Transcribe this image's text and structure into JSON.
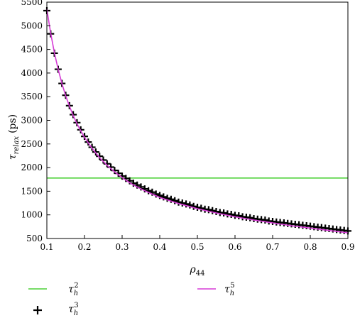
{
  "chart_data": {
    "type": "line",
    "x_label_symbol": "ρ",
    "x_label_sub": "44",
    "y_label_symbol": "τ",
    "y_label_sub": "relax",
    "y_label_unit": "(ps)",
    "xlim": [
      0.1,
      0.9
    ],
    "ylim": [
      500,
      5500
    ],
    "x_ticks": [
      "0.1",
      "0.2",
      "0.3",
      "0.4",
      "0.5",
      "0.6",
      "0.7",
      "0.8",
      "0.9"
    ],
    "x_tick_values": [
      0.1,
      0.2,
      0.3,
      0.4,
      0.5,
      0.6,
      0.7,
      0.8,
      0.9
    ],
    "y_ticks": [
      "500",
      "1000",
      "1500",
      "2000",
      "2500",
      "3000",
      "3500",
      "4000",
      "4500",
      "5000",
      "5500"
    ],
    "y_tick_values": [
      500,
      1000,
      1500,
      2000,
      2500,
      3000,
      3500,
      4000,
      4500,
      5000,
      5500
    ],
    "grid": false,
    "legend_position": "below",
    "series": [
      {
        "name_symbol": "τ",
        "name_sub": "h",
        "name_sup": "2",
        "style": "line",
        "color": "#4cd137",
        "x": [
          0.1,
          0.9
        ],
        "y": [
          1780,
          1780
        ]
      },
      {
        "name_symbol": "τ",
        "name_sub": "h",
        "name_sup": "3",
        "style": "markers",
        "color": "#000000",
        "marker": "plus",
        "x": [
          0.1,
          0.11,
          0.12,
          0.13,
          0.14,
          0.15,
          0.16,
          0.17,
          0.18,
          0.19,
          0.2,
          0.21,
          0.22,
          0.23,
          0.24,
          0.25,
          0.26,
          0.27,
          0.28,
          0.29,
          0.3,
          0.31,
          0.32,
          0.33,
          0.34,
          0.35,
          0.36,
          0.37,
          0.38,
          0.39,
          0.4,
          0.41,
          0.42,
          0.43,
          0.44,
          0.45,
          0.46,
          0.47,
          0.48,
          0.49,
          0.5,
          0.51,
          0.52,
          0.53,
          0.54,
          0.55,
          0.56,
          0.57,
          0.58,
          0.59,
          0.6,
          0.61,
          0.62,
          0.63,
          0.64,
          0.65,
          0.66,
          0.67,
          0.68,
          0.69,
          0.7,
          0.71,
          0.72,
          0.73,
          0.74,
          0.75,
          0.76,
          0.77,
          0.78,
          0.79,
          0.8,
          0.81,
          0.82,
          0.83,
          0.84,
          0.85,
          0.86,
          0.87,
          0.88,
          0.89,
          0.9
        ],
        "y": [
          5320,
          4830,
          4420,
          4080,
          3780,
          3530,
          3310,
          3120,
          2950,
          2800,
          2660,
          2540,
          2430,
          2330,
          2240,
          2160,
          2080,
          2010,
          1940,
          1880,
          1820,
          1770,
          1720,
          1670,
          1630,
          1590,
          1550,
          1510,
          1480,
          1440,
          1410,
          1380,
          1350,
          1330,
          1300,
          1270,
          1250,
          1230,
          1210,
          1180,
          1160,
          1140,
          1120,
          1110,
          1090,
          1070,
          1050,
          1040,
          1020,
          1010,
          990,
          980,
          960,
          950,
          940,
          920,
          910,
          900,
          890,
          870,
          860,
          850,
          840,
          830,
          820,
          810,
          800,
          790,
          780,
          770,
          760,
          750,
          740,
          730,
          720,
          710,
          700,
          690,
          680,
          670,
          660
        ]
      },
      {
        "name_symbol": "τ",
        "name_sub": "h",
        "name_sup": "5",
        "style": "line",
        "color": "#d63ad6",
        "x": [
          0.1,
          0.11,
          0.12,
          0.13,
          0.14,
          0.15,
          0.16,
          0.17,
          0.18,
          0.19,
          0.2,
          0.22,
          0.24,
          0.26,
          0.28,
          0.3,
          0.32,
          0.34,
          0.36,
          0.38,
          0.4,
          0.45,
          0.5,
          0.55,
          0.6,
          0.65,
          0.7,
          0.75,
          0.8,
          0.85,
          0.9
        ],
        "y": [
          5350,
          4850,
          4430,
          4080,
          3780,
          3520,
          3300,
          3100,
          2930,
          2780,
          2640,
          2410,
          2210,
          2050,
          1910,
          1790,
          1680,
          1590,
          1510,
          1440,
          1370,
          1240,
          1130,
          1040,
          960,
          890,
          830,
          770,
          720,
          670,
          620
        ]
      }
    ]
  }
}
